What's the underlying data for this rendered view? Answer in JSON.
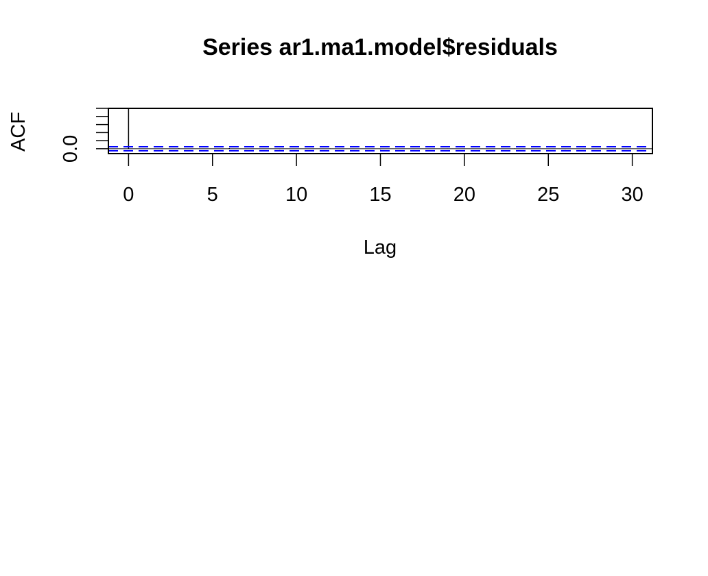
{
  "chart_data": {
    "type": "bar",
    "title": "Series  ar1.ma1.model$residuals",
    "xlabel": "Lag",
    "ylabel": "ACF",
    "x_tick_labels": [
      "0",
      "5",
      "10",
      "15",
      "20",
      "25",
      "30"
    ],
    "x_ticks": [
      0,
      5,
      10,
      15,
      20,
      25,
      30
    ],
    "y_tick_labels": [
      "0.0"
    ],
    "y_ticks_minor": [
      0.0,
      0.2,
      0.4,
      0.6,
      0.8,
      1.0
    ],
    "xlim": [
      -1.2,
      31.2
    ],
    "ylim": [
      -0.12,
      1.0
    ],
    "lags": [
      0,
      1,
      2,
      3,
      4,
      5,
      6,
      7,
      8,
      9,
      10,
      11,
      12,
      13,
      14,
      15,
      16,
      17,
      18,
      19,
      20,
      21,
      22,
      23,
      24,
      25,
      26,
      27,
      28,
      29,
      30
    ],
    "values": [
      1.0,
      0.003,
      -0.008,
      0.012,
      -0.004,
      0.006,
      0.015,
      -0.006,
      0.004,
      -0.01,
      0.007,
      -0.003,
      0.009,
      -0.005,
      0.002,
      -0.012,
      0.006,
      -0.004,
      0.003,
      0.008,
      -0.007,
      0.005,
      -0.002,
      0.01,
      -0.006,
      0.003,
      -0.009,
      0.004,
      0.006,
      -0.003,
      0.002
    ],
    "confidence_bound": 0.05,
    "bar_color": "#000000",
    "ci_color": "#0000ff",
    "grid": false,
    "legend": "none"
  }
}
